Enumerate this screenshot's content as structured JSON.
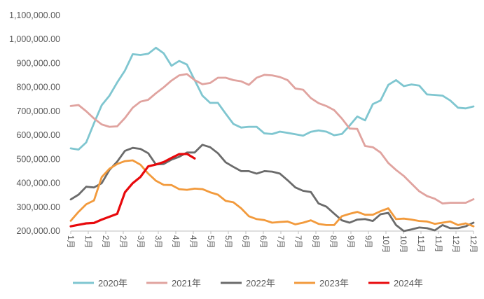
{
  "chart_data": {
    "type": "line",
    "title": "",
    "xlabel": "",
    "ylabel": "",
    "ylim": [
      200000,
      1100000
    ],
    "y_ticks": [
      "200,000.00",
      "300,000.00",
      "400,000.00",
      "500,000.00",
      "600,000.00",
      "700,000.00",
      "800,000.00",
      "900,000.00",
      "1,000,000.00",
      "1,100,000.00"
    ],
    "x_tick_labels": [
      "1月",
      "1月",
      "2月",
      "2月",
      "3月",
      "3月",
      "4月",
      "4月",
      "5月",
      "5月",
      "6月",
      "6月",
      "7月",
      "7月",
      "8月",
      "8月",
      "9月",
      "9月",
      "10月",
      "10月",
      "11月",
      "11月",
      "12月",
      "12月"
    ],
    "grid": false,
    "legend_position": "bottom",
    "series": [
      {
        "name": "2020年",
        "color": "#7fc6d0",
        "values": [
          545000,
          540000,
          570000,
          650000,
          725000,
          765000,
          820000,
          870000,
          938000,
          935000,
          940000,
          965000,
          942000,
          890000,
          910000,
          895000,
          830000,
          765000,
          735000,
          735000,
          690000,
          647000,
          632000,
          635000,
          635000,
          608000,
          605000,
          615000,
          610000,
          604000,
          598000,
          614000,
          620000,
          615000,
          600000,
          605000,
          640000,
          678000,
          662000,
          730000,
          745000,
          810000,
          830000,
          805000,
          812000,
          807000,
          770000,
          768000,
          765000,
          745000,
          715000,
          712000,
          720000
        ]
      },
      {
        "name": "2021年",
        "color": "#e0a39f",
        "values": [
          722000,
          726000,
          700000,
          670000,
          645000,
          635000,
          637000,
          672000,
          715000,
          740000,
          748000,
          775000,
          800000,
          828000,
          850000,
          855000,
          830000,
          813000,
          818000,
          840000,
          840000,
          830000,
          825000,
          810000,
          840000,
          852000,
          850000,
          843000,
          830000,
          795000,
          790000,
          755000,
          734000,
          722000,
          705000,
          670000,
          628000,
          626000,
          555000,
          550000,
          528000,
          484000,
          455000,
          430000,
          398000,
          366000,
          346000,
          335000,
          315000,
          318000,
          318000,
          318000,
          333000
        ]
      },
      {
        "name": "2022年",
        "color": "#6b6b6b",
        "values": [
          332000,
          352000,
          385000,
          382000,
          400000,
          455000,
          490000,
          535000,
          547000,
          543000,
          525000,
          478000,
          480000,
          498000,
          510000,
          528000,
          528000,
          560000,
          550000,
          525000,
          487000,
          468000,
          450000,
          450000,
          440000,
          450000,
          448000,
          440000,
          412000,
          382000,
          368000,
          363000,
          315000,
          302000,
          273000,
          245000,
          235000,
          248000,
          250000,
          242000,
          270000,
          276000,
          225000,
          200000,
          207000,
          215000,
          212000,
          203000,
          225000,
          212000,
          212000,
          220000,
          235000
        ]
      },
      {
        "name": "2023年",
        "color": "#f29a3c",
        "values": [
          243000,
          280000,
          312000,
          328000,
          425000,
          460000,
          480000,
          492000,
          495000,
          477000,
          440000,
          410000,
          393000,
          392000,
          375000,
          372000,
          377000,
          375000,
          362000,
          352000,
          326000,
          320000,
          295000,
          262000,
          250000,
          246000,
          235000,
          238000,
          240000,
          228000,
          235000,
          245000,
          230000,
          225000,
          225000,
          262000,
          272000,
          280000,
          268000,
          268000,
          283000,
          295000,
          250000,
          252000,
          248000,
          242000,
          240000,
          230000,
          235000,
          240000,
          225000,
          232000,
          220000
        ]
      },
      {
        "name": "2024年",
        "color": "#e8090c",
        "values": [
          220000,
          226000,
          232000,
          234000,
          248000,
          260000,
          272000,
          362000,
          400000,
          426000,
          470000,
          478000,
          488000,
          505000,
          521000,
          522000,
          503000
        ]
      }
    ]
  }
}
